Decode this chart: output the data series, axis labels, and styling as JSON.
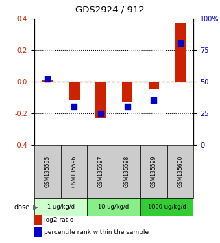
{
  "title": "GDS2924 / 912",
  "samples": [
    "GSM135595",
    "GSM135596",
    "GSM135597",
    "GSM135598",
    "GSM135599",
    "GSM135600"
  ],
  "log2_ratios": [
    0.005,
    -0.12,
    -0.23,
    -0.13,
    -0.05,
    0.37
  ],
  "percentile_ranks": [
    52,
    30,
    25,
    30,
    35,
    80
  ],
  "ylim_left": [
    -0.4,
    0.4
  ],
  "ylim_right": [
    0,
    100
  ],
  "yticks_left": [
    -0.4,
    -0.2,
    0.0,
    0.2,
    0.4
  ],
  "yticks_right": [
    0,
    25,
    50,
    75,
    100
  ],
  "ytick_labels_right": [
    "0",
    "25",
    "50",
    "75",
    "100%"
  ],
  "dose_groups": [
    {
      "label": "1 ug/kg/d",
      "indices": [
        0,
        1
      ],
      "color": "#ccffcc"
    },
    {
      "label": "10 ug/kg/d",
      "indices": [
        2,
        3
      ],
      "color": "#88ee88"
    },
    {
      "label": "1000 ug/kg/d",
      "indices": [
        4,
        5
      ],
      "color": "#33cc33"
    }
  ],
  "bar_color": "#cc2200",
  "point_color": "#0000cc",
  "dashed_line_color": "#cc0000",
  "sample_box_color": "#cccccc",
  "bg_color": "#ffffff",
  "bar_width": 0.4,
  "point_size": 36,
  "legend_items": [
    "log2 ratio",
    "percentile rank within the sample"
  ]
}
